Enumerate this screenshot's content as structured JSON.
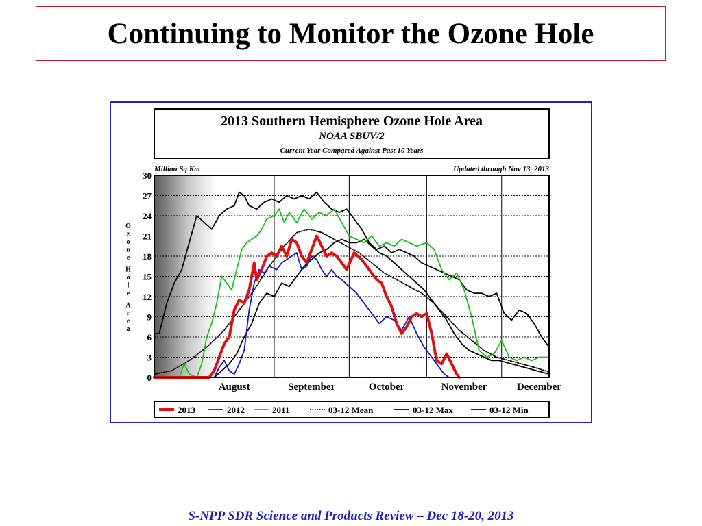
{
  "slide": {
    "title": "Continuing to Monitor the Ozone Hole",
    "footer": "S-NPP SDR Science and Products Review – Dec 18-20, 2013"
  },
  "colors": {
    "title_border": "#c0202a",
    "chart_border": "#1f22c9",
    "footer_text": "#1f1fc0",
    "series_2013": "#e01010",
    "series_2012": "#1414c8",
    "series_2011": "#18c018",
    "series_stats": "#000000"
  },
  "chart_data": {
    "type": "line",
    "title": "2013 Southern Hemisphere Ozone Hole Area",
    "subtitle": "NOAA SBUV/2",
    "subtitle2": "Current Year Compared Against Past 10 Years",
    "unit_label": "Million Sq Km",
    "updated_label": "Updated through Nov 13, 2013",
    "ylabel": "Ozone Hole Area",
    "ylim": [
      0,
      30
    ],
    "yticks": [
      "0",
      "3",
      "6",
      "9",
      "12",
      "15",
      "18",
      "21",
      "24",
      "27",
      "30"
    ],
    "xlim": [
      "Jul 15",
      "Dec 20"
    ],
    "month_labels": [
      {
        "label": "August",
        "date": "Aug 1"
      },
      {
        "label": "September",
        "date": "Sep 1"
      },
      {
        "label": "October",
        "date": "Oct 1"
      },
      {
        "label": "November",
        "date": "Nov 1"
      },
      {
        "label": "December",
        "date": "Dec 1"
      }
    ],
    "month_boundaries": [
      "Sep 1",
      "Oct 1",
      "Nov 1",
      "Dec 1"
    ],
    "grid": "horizontal dotted",
    "legend_position": "bottom",
    "legend": [
      "2013",
      "2012",
      "2011",
      "03-12 Mean",
      "03-12 Max",
      "03-12 Min"
    ],
    "series": [
      {
        "name": "2013",
        "color": "#e01010",
        "style": "solid-thick",
        "points": [
          [
            "Jul 15",
            0
          ],
          [
            "Aug 1",
            0
          ],
          [
            "Aug 6",
            0
          ],
          [
            "Aug 8",
            1
          ],
          [
            "Aug 10",
            3
          ],
          [
            "Aug 12",
            5
          ],
          [
            "Aug 14",
            6
          ],
          [
            "Aug 16",
            10
          ],
          [
            "Aug 18",
            11.5
          ],
          [
            "Aug 20",
            11
          ],
          [
            "Aug 22",
            13
          ],
          [
            "Aug 24",
            17
          ],
          [
            "Aug 25",
            14.5
          ],
          [
            "Aug 27",
            16
          ],
          [
            "Aug 29",
            18
          ],
          [
            "Aug 31",
            18.5
          ],
          [
            "Sep 2",
            18
          ],
          [
            "Sep 4",
            19.5
          ],
          [
            "Sep 6",
            18
          ],
          [
            "Sep 8",
            20.5
          ],
          [
            "Sep 10",
            20
          ],
          [
            "Sep 12",
            18
          ],
          [
            "Sep 14",
            17
          ],
          [
            "Sep 16",
            19
          ],
          [
            "Sep 18",
            21
          ],
          [
            "Sep 20",
            19.5
          ],
          [
            "Sep 22",
            18
          ],
          [
            "Sep 24",
            18.5
          ],
          [
            "Sep 26",
            18
          ],
          [
            "Sep 28",
            17
          ],
          [
            "Sep 30",
            16
          ],
          [
            "Oct 3",
            18.5
          ],
          [
            "Oct 6",
            17.5
          ],
          [
            "Oct 9",
            16
          ],
          [
            "Oct 12",
            14.5
          ],
          [
            "Oct 14",
            14
          ],
          [
            "Oct 16",
            12
          ],
          [
            "Oct 18",
            10.5
          ],
          [
            "Oct 20",
            8
          ],
          [
            "Oct 22",
            6.5
          ],
          [
            "Oct 24",
            7.5
          ],
          [
            "Oct 26",
            9
          ],
          [
            "Oct 28",
            9.5
          ],
          [
            "Oct 30",
            9
          ],
          [
            "Nov 1",
            9.5
          ],
          [
            "Nov 3",
            6.5
          ],
          [
            "Nov 5",
            2.5
          ],
          [
            "Nov 7",
            2
          ],
          [
            "Nov 9",
            3.5
          ],
          [
            "Nov 11",
            2
          ],
          [
            "Nov 13",
            0.5
          ],
          [
            "Nov 14",
            0
          ]
        ]
      },
      {
        "name": "2012",
        "color": "#1414c8",
        "style": "solid",
        "points": [
          [
            "Aug 8",
            0
          ],
          [
            "Aug 10",
            1.5
          ],
          [
            "Aug 12",
            2.5
          ],
          [
            "Aug 14",
            1
          ],
          [
            "Aug 16",
            0.5
          ],
          [
            "Aug 18",
            2
          ],
          [
            "Aug 20",
            4
          ],
          [
            "Aug 22",
            10
          ],
          [
            "Aug 24",
            14
          ],
          [
            "Aug 26",
            16
          ],
          [
            "Aug 28",
            15.5
          ],
          [
            "Aug 30",
            16.5
          ],
          [
            "Sep 2",
            16
          ],
          [
            "Sep 4",
            17
          ],
          [
            "Sep 6",
            17.5
          ],
          [
            "Sep 8",
            18
          ],
          [
            "Sep 10",
            18.5
          ],
          [
            "Sep 12",
            16
          ],
          [
            "Sep 14",
            16.5
          ],
          [
            "Sep 16",
            18
          ],
          [
            "Sep 18",
            17.5
          ],
          [
            "Sep 20",
            16
          ],
          [
            "Sep 22",
            15
          ],
          [
            "Sep 24",
            16
          ],
          [
            "Sep 26",
            15
          ],
          [
            "Sep 28",
            14.5
          ],
          [
            "Oct 1",
            13.5
          ],
          [
            "Oct 4",
            12.5
          ],
          [
            "Oct 7",
            11
          ],
          [
            "Oct 10",
            9.5
          ],
          [
            "Oct 13",
            8
          ],
          [
            "Oct 16",
            9
          ],
          [
            "Oct 19",
            8.5
          ],
          [
            "Oct 22",
            7
          ],
          [
            "Oct 25",
            9
          ],
          [
            "Oct 28",
            6.5
          ],
          [
            "Oct 31",
            4.5
          ],
          [
            "Nov 3",
            3
          ],
          [
            "Nov 6",
            1.5
          ],
          [
            "Nov 8",
            0.5
          ],
          [
            "Nov 10",
            0
          ]
        ]
      },
      {
        "name": "2011",
        "color": "#18c018",
        "style": "solid",
        "points": [
          [
            "Jul 15",
            0
          ],
          [
            "Jul 25",
            0
          ],
          [
            "Jul 27",
            2
          ],
          [
            "Jul 29",
            0.5
          ],
          [
            "Aug 1",
            0
          ],
          [
            "Aug 3",
            2
          ],
          [
            "Aug 5",
            6
          ],
          [
            "Aug 7",
            8
          ],
          [
            "Aug 9",
            11
          ],
          [
            "Aug 11",
            15
          ],
          [
            "Aug 13",
            14
          ],
          [
            "Aug 15",
            13
          ],
          [
            "Aug 17",
            16
          ],
          [
            "Aug 19",
            19
          ],
          [
            "Aug 21",
            20
          ],
          [
            "Aug 23",
            20.5
          ],
          [
            "Aug 25",
            21
          ],
          [
            "Aug 27",
            22
          ],
          [
            "Aug 29",
            23.5
          ],
          [
            "Sep 1",
            24
          ],
          [
            "Sep 3",
            25
          ],
          [
            "Sep 5",
            23
          ],
          [
            "Sep 7",
            24.5
          ],
          [
            "Sep 10",
            23
          ],
          [
            "Sep 13",
            25
          ],
          [
            "Sep 16",
            23.5
          ],
          [
            "Sep 19",
            24.5
          ],
          [
            "Sep 22",
            24
          ],
          [
            "Sep 25",
            25
          ],
          [
            "Sep 28",
            23
          ],
          [
            "Oct 1",
            21
          ],
          [
            "Oct 4",
            20.5
          ],
          [
            "Oct 7",
            20
          ],
          [
            "Oct 10",
            21
          ],
          [
            "Oct 13",
            19.5
          ],
          [
            "Oct 16",
            20
          ],
          [
            "Oct 19",
            19.5
          ],
          [
            "Oct 22",
            20.5
          ],
          [
            "Oct 25",
            20
          ],
          [
            "Oct 28",
            19.5
          ],
          [
            "Nov 1",
            20
          ],
          [
            "Nov 4",
            19
          ],
          [
            "Nov 7",
            16
          ],
          [
            "Nov 10",
            14.5
          ],
          [
            "Nov 13",
            15.5
          ],
          [
            "Nov 16",
            13
          ],
          [
            "Nov 19",
            9
          ],
          [
            "Nov 22",
            4
          ],
          [
            "Nov 25",
            3
          ],
          [
            "Nov 28",
            3.5
          ],
          [
            "Dec 1",
            5.5
          ],
          [
            "Dec 4",
            3
          ],
          [
            "Dec 7",
            2.5
          ],
          [
            "Dec 10",
            3
          ],
          [
            "Dec 13",
            2.5
          ],
          [
            "Dec 16",
            3
          ],
          [
            "Dec 20",
            3
          ]
        ]
      },
      {
        "name": "03-12 Mean",
        "color": "#000000",
        "style": "dotted",
        "points": [
          [
            "Jul 15",
            0.5
          ],
          [
            "Jul 22",
            1
          ],
          [
            "Jul 29",
            2.5
          ],
          [
            "Aug 5",
            4.5
          ],
          [
            "Aug 12",
            7
          ],
          [
            "Aug 18",
            10
          ],
          [
            "Aug 24",
            13
          ],
          [
            "Aug 30",
            16.5
          ],
          [
            "Sep 5",
            19.5
          ],
          [
            "Sep 10",
            21.5
          ],
          [
            "Sep 15",
            22
          ],
          [
            "Sep 20",
            21.5
          ],
          [
            "Sep 25",
            20.5
          ],
          [
            "Sep 30",
            19.5
          ],
          [
            "Oct 5",
            18.5
          ],
          [
            "Oct 10",
            17
          ],
          [
            "Oct 15",
            15.5
          ],
          [
            "Oct 20",
            14.5
          ],
          [
            "Oct 25",
            13.5
          ],
          [
            "Oct 30",
            12.5
          ],
          [
            "Nov 4",
            11
          ],
          [
            "Nov 9",
            9
          ],
          [
            "Nov 14",
            7
          ],
          [
            "Nov 19",
            5.5
          ],
          [
            "Nov 24",
            4
          ],
          [
            "Nov 29",
            3
          ],
          [
            "Dec 4",
            2.5
          ],
          [
            "Dec 9",
            2
          ],
          [
            "Dec 14",
            1.5
          ],
          [
            "Dec 20",
            0.8
          ]
        ]
      },
      {
        "name": "03-12 Max",
        "color": "#000000",
        "style": "solid",
        "points": [
          [
            "Jul 15",
            6.5
          ],
          [
            "Jul 17",
            6.5
          ],
          [
            "Jul 20",
            11
          ],
          [
            "Jul 23",
            14
          ],
          [
            "Jul 26",
            16
          ],
          [
            "Jul 29",
            20
          ],
          [
            "Aug 1",
            24
          ],
          [
            "Aug 4",
            23
          ],
          [
            "Aug 7",
            22
          ],
          [
            "Aug 10",
            24
          ],
          [
            "Aug 13",
            25
          ],
          [
            "Aug 16",
            25.5
          ],
          [
            "Aug 18",
            27.5
          ],
          [
            "Aug 20",
            27
          ],
          [
            "Aug 22",
            25.5
          ],
          [
            "Aug 25",
            25
          ],
          [
            "Aug 28",
            26
          ],
          [
            "Aug 31",
            26.5
          ],
          [
            "Sep 3",
            26
          ],
          [
            "Sep 6",
            27
          ],
          [
            "Sep 9",
            26.5
          ],
          [
            "Sep 12",
            27
          ],
          [
            "Sep 15",
            26.5
          ],
          [
            "Sep 18",
            27.5
          ],
          [
            "Sep 21",
            26
          ],
          [
            "Sep 24",
            25
          ],
          [
            "Sep 27",
            24.5
          ],
          [
            "Sep 30",
            25
          ],
          [
            "Oct 3",
            23.5
          ],
          [
            "Oct 6",
            22
          ],
          [
            "Oct 9",
            20
          ],
          [
            "Oct 12",
            19
          ],
          [
            "Oct 15",
            19.5
          ],
          [
            "Oct 18",
            18.5
          ],
          [
            "Oct 21",
            19
          ],
          [
            "Oct 24",
            18.5
          ],
          [
            "Oct 27",
            18
          ],
          [
            "Oct 30",
            17
          ],
          [
            "Nov 2",
            16.5
          ],
          [
            "Nov 5",
            16
          ],
          [
            "Nov 8",
            15.5
          ],
          [
            "Nov 11",
            15
          ],
          [
            "Nov 14",
            14.5
          ],
          [
            "Nov 17",
            13
          ],
          [
            "Nov 20",
            12.5
          ],
          [
            "Nov 23",
            12.5
          ],
          [
            "Nov 26",
            12
          ],
          [
            "Nov 29",
            12.5
          ],
          [
            "Dec 2",
            9.5
          ],
          [
            "Dec 5",
            8.5
          ],
          [
            "Dec 8",
            10
          ],
          [
            "Dec 11",
            9.5
          ],
          [
            "Dec 14",
            8
          ],
          [
            "Dec 17",
            6
          ],
          [
            "Dec 20",
            4.5
          ]
        ]
      },
      {
        "name": "03-12 Min",
        "color": "#000000",
        "style": "solid",
        "points": [
          [
            "Jul 15",
            0
          ],
          [
            "Aug 8",
            0
          ],
          [
            "Aug 11",
            1
          ],
          [
            "Aug 14",
            2
          ],
          [
            "Aug 17",
            3.5
          ],
          [
            "Aug 20",
            6
          ],
          [
            "Aug 23",
            8
          ],
          [
            "Aug 26",
            11
          ],
          [
            "Aug 29",
            12.5
          ],
          [
            "Sep 1",
            12
          ],
          [
            "Sep 4",
            14
          ],
          [
            "Sep 7",
            13.5
          ],
          [
            "Sep 10",
            15
          ],
          [
            "Sep 13",
            16.5
          ],
          [
            "Sep 16",
            17.5
          ],
          [
            "Sep 19",
            18.5
          ],
          [
            "Sep 22",
            19
          ],
          [
            "Sep 25",
            20
          ],
          [
            "Sep 28",
            20.5
          ],
          [
            "Oct 1",
            20
          ],
          [
            "Oct 4",
            20
          ],
          [
            "Oct 7",
            20.5
          ],
          [
            "Oct 10",
            19.5
          ],
          [
            "Oct 13",
            18.5
          ],
          [
            "Oct 16",
            18
          ],
          [
            "Oct 19",
            17
          ],
          [
            "Oct 22",
            16
          ],
          [
            "Oct 25",
            15
          ],
          [
            "Oct 28",
            14
          ],
          [
            "Oct 31",
            13
          ],
          [
            "Nov 3",
            11.5
          ],
          [
            "Nov 6",
            10
          ],
          [
            "Nov 9",
            8.5
          ],
          [
            "Nov 12",
            6.5
          ],
          [
            "Nov 15",
            5
          ],
          [
            "Nov 18",
            4
          ],
          [
            "Nov 21",
            3.5
          ],
          [
            "Nov 24",
            3
          ],
          [
            "Nov 27",
            2.5
          ],
          [
            "Nov 30",
            2.5
          ],
          [
            "Dec 5",
            2
          ],
          [
            "Dec 10",
            1.5
          ],
          [
            "Dec 15",
            1
          ],
          [
            "Dec 20",
            0.5
          ]
        ]
      }
    ]
  }
}
